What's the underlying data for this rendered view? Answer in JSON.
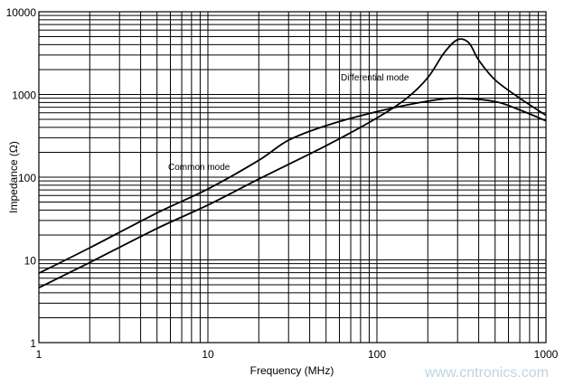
{
  "chart_data": {
    "type": "line",
    "title": "",
    "xlabel": "Frequency (MHz)",
    "ylabel": "Impedance (Ω)",
    "xscale": "log",
    "yscale": "log",
    "xlim": [
      1,
      1000
    ],
    "ylim": [
      1,
      10000
    ],
    "grid": true,
    "xticks": [
      "1",
      "10",
      "100",
      "1000"
    ],
    "yticks": [
      "1",
      "10",
      "100",
      "1000",
      "10000"
    ],
    "series": [
      {
        "name": "Common mode",
        "x": [
          1,
          2,
          5,
          10,
          20,
          30,
          50,
          100,
          200,
          300,
          500,
          700,
          1000
        ],
        "y": [
          6.9,
          14,
          37,
          72,
          160,
          280,
          420,
          620,
          830,
          900,
          820,
          650,
          480
        ]
      },
      {
        "name": "Differential mode",
        "x": [
          1,
          2,
          5,
          10,
          20,
          50,
          100,
          150,
          200,
          250,
          300,
          350,
          400,
          500,
          700,
          1000
        ],
        "y": [
          4.6,
          9.3,
          24,
          46,
          95,
          240,
          520,
          900,
          1600,
          3200,
          4600,
          4200,
          2600,
          1500,
          900,
          560
        ]
      }
    ],
    "line_color": "#000000",
    "watermark": "www.cntronics.com"
  }
}
